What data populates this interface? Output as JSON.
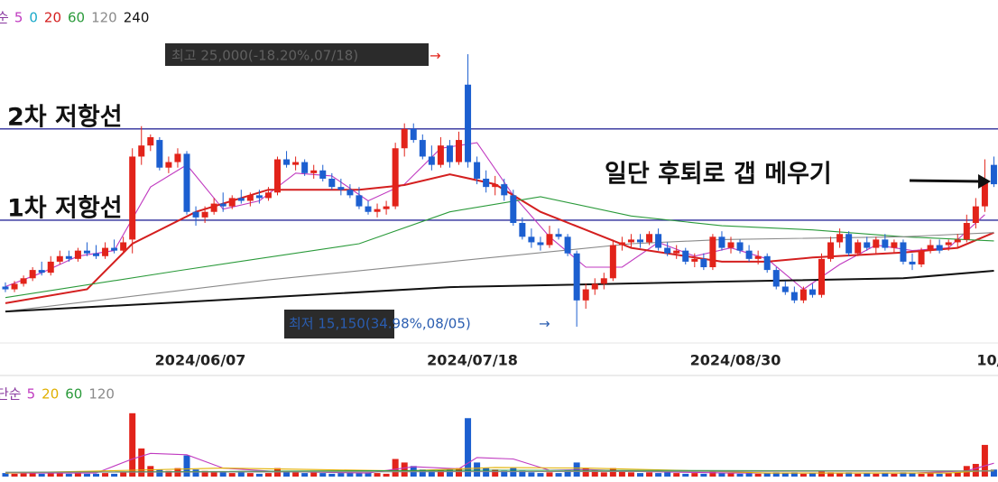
{
  "chart_data": {
    "type": "candlestick",
    "categories": [
      null,
      null,
      null,
      null,
      null,
      null,
      null,
      null,
      null,
      null,
      null,
      null,
      null,
      null,
      null,
      null,
      null,
      null,
      null,
      null,
      null,
      "2024/06/07",
      null,
      null,
      null,
      null,
      null,
      null,
      null,
      null,
      null,
      null,
      null,
      null,
      null,
      null,
      null,
      null,
      null,
      null,
      null,
      null,
      null,
      null,
      null,
      null,
      null,
      null,
      null,
      null,
      null,
      "2024/07/18",
      null,
      null,
      null,
      null,
      null,
      null,
      null,
      null,
      null,
      null,
      null,
      null,
      null,
      null,
      null,
      null,
      null,
      null,
      null,
      null,
      null,
      null,
      null,
      null,
      null,
      null,
      null,
      null,
      "2024/08/30",
      null,
      null,
      null,
      null,
      null,
      null,
      null,
      null,
      null,
      null,
      null,
      null,
      null,
      null,
      null,
      null,
      null,
      null,
      null,
      null,
      null,
      null,
      null,
      null,
      null,
      null,
      null,
      "10/",
      null
    ],
    "open": [
      16600,
      16500,
      16700,
      16900,
      17200,
      17100,
      17500,
      17700,
      17600,
      17900,
      17800,
      17700,
      18000,
      17900,
      18300,
      21300,
      21700,
      21900,
      20900,
      21100,
      21400,
      19300,
      19100,
      19300,
      19600,
      19500,
      19800,
      19700,
      19900,
      19800,
      20000,
      21200,
      21000,
      21100,
      20700,
      20800,
      20500,
      20200,
      20100,
      19900,
      19500,
      19300,
      19400,
      19500,
      21600,
      22300,
      21900,
      21300,
      21000,
      21700,
      21100,
      23900,
      21100,
      20500,
      20200,
      20300,
      19900,
      18900,
      18400,
      18200,
      18100,
      18500,
      18400,
      17800,
      16100,
      16500,
      16700,
      16900,
      18100,
      18200,
      18300,
      18200,
      18500,
      18000,
      17800,
      17900,
      17500,
      17600,
      17300,
      18400,
      18000,
      18200,
      17900,
      17600,
      17700,
      17200,
      16600,
      16400,
      16100,
      16500,
      16300,
      17600,
      18200,
      18500,
      17800,
      18200,
      18000,
      18300,
      18000,
      18200,
      17500,
      17400,
      17900,
      18100,
      18100,
      18200,
      18300,
      18900,
      19500,
      21000
    ],
    "high": [
      16750,
      16800,
      17000,
      17300,
      17500,
      17700,
      17900,
      17900,
      18000,
      18200,
      18100,
      18200,
      18300,
      18400,
      21600,
      22400,
      22100,
      22000,
      21300,
      21600,
      21500,
      19500,
      19500,
      19800,
      20000,
      19900,
      20100,
      20000,
      20100,
      20200,
      21300,
      21500,
      21300,
      21200,
      21000,
      21000,
      20700,
      20500,
      20300,
      20200,
      19700,
      19600,
      19700,
      21800,
      22500,
      22500,
      22100,
      21700,
      22000,
      21900,
      22200,
      25000,
      21300,
      20800,
      20600,
      20500,
      20100,
      19100,
      18700,
      18400,
      18800,
      18700,
      18500,
      17900,
      16700,
      16900,
      17100,
      18300,
      18400,
      18500,
      18500,
      18600,
      18700,
      18200,
      18100,
      18000,
      17800,
      17800,
      18500,
      18600,
      18400,
      18300,
      18100,
      17900,
      17800,
      17300,
      16800,
      16600,
      16600,
      16700,
      17800,
      18400,
      18700,
      18600,
      18300,
      18400,
      18400,
      18500,
      18300,
      18300,
      17800,
      18000,
      18300,
      18300,
      18300,
      18500,
      19200,
      19800,
      21200,
      21300
    ],
    "low": [
      16400,
      16400,
      16600,
      16800,
      17000,
      17000,
      17400,
      17500,
      17500,
      17700,
      17600,
      17600,
      17800,
      17800,
      17800,
      21000,
      21500,
      20800,
      20700,
      20900,
      19200,
      18800,
      18900,
      19200,
      19300,
      19400,
      19600,
      19500,
      19600,
      19700,
      19900,
      20900,
      20800,
      20600,
      20500,
      20400,
      20100,
      19900,
      19800,
      19400,
      19200,
      19100,
      19200,
      19400,
      21300,
      21800,
      21200,
      20800,
      20900,
      20900,
      21000,
      20900,
      20300,
      20000,
      19900,
      19700,
      18800,
      18300,
      18000,
      17900,
      18000,
      18300,
      17700,
      15150,
      15800,
      16300,
      16500,
      16800,
      17900,
      18000,
      18000,
      18100,
      17900,
      17700,
      17600,
      17400,
      17300,
      17200,
      17200,
      17900,
      17800,
      17800,
      17500,
      17400,
      17100,
      16500,
      16300,
      16000,
      16000,
      16200,
      16200,
      17500,
      18000,
      17700,
      17700,
      17900,
      17800,
      17900,
      17800,
      17400,
      17200,
      17300,
      17800,
      17800,
      17900,
      18000,
      18200,
      18700,
      19300,
      20200
    ],
    "close": [
      16500,
      16700,
      16900,
      17200,
      17100,
      17500,
      17700,
      17600,
      17900,
      17800,
      17700,
      18000,
      17900,
      18200,
      21300,
      21700,
      22000,
      20900,
      21100,
      21400,
      19300,
      19100,
      19300,
      19600,
      19500,
      19800,
      19700,
      19900,
      19800,
      20000,
      21200,
      21000,
      21100,
      20700,
      20800,
      20500,
      20200,
      20100,
      19900,
      19500,
      19300,
      19400,
      19500,
      21600,
      22300,
      21900,
      21300,
      21000,
      21700,
      21100,
      21900,
      21100,
      20500,
      20200,
      20300,
      19900,
      18900,
      18400,
      18200,
      18100,
      18500,
      18400,
      17800,
      16100,
      16500,
      16700,
      16900,
      18100,
      18200,
      18300,
      18200,
      18500,
      18000,
      17800,
      17900,
      17500,
      17600,
      17300,
      18400,
      18000,
      18200,
      17900,
      17600,
      17700,
      17200,
      16600,
      16400,
      16100,
      16500,
      16300,
      17600,
      18200,
      18500,
      17800,
      18200,
      18000,
      18300,
      18000,
      18200,
      17500,
      17400,
      17900,
      18100,
      17900,
      18200,
      18300,
      18900,
      19500,
      20400,
      20300
    ],
    "up_color": "#e2231a",
    "down_color": "#1c5fd0",
    "ylim": [
      14560,
      26960
    ],
    "legend_label": "순",
    "series": [
      {
        "name": "5",
        "color": "#c03ac0",
        "x": [
          0,
          4,
          8,
          12,
          16,
          20,
          24,
          28,
          32,
          36,
          40,
          44,
          48,
          52,
          56,
          60,
          64,
          68,
          72,
          76,
          80,
          84,
          88,
          92,
          96,
          100,
          104,
          108
        ],
        "values": [
          16600,
          17100,
          17700,
          17900,
          20200,
          21000,
          19400,
          19700,
          20700,
          20600,
          19700,
          20300,
          21600,
          21800,
          19900,
          18400,
          17300,
          17300,
          18200,
          17700,
          18000,
          17600,
          16500,
          17400,
          18100,
          17900,
          18000,
          19200
        ]
      },
      {
        "name": "0",
        "color": "#19a9c9",
        "x": [],
        "values": []
      },
      {
        "name": "20",
        "color": "#d41f1f",
        "x": [
          0,
          9,
          14,
          21,
          29,
          39,
          44,
          49,
          54,
          59,
          69,
          79,
          84,
          89,
          99,
          105,
          109
        ],
        "values": [
          16000,
          16500,
          18150,
          19300,
          20100,
          20100,
          20270,
          20660,
          20300,
          19300,
          18000,
          17500,
          17500,
          17650,
          17830,
          18000,
          18550
        ]
      },
      {
        "name": "60",
        "color": "#2a9a3a",
        "x": [
          0,
          19,
          39,
          49,
          59,
          69,
          79,
          89,
          99,
          109
        ],
        "values": [
          16200,
          17170,
          18150,
          19300,
          19850,
          19150,
          18800,
          18650,
          18400,
          18250
        ]
      },
      {
        "name": "120",
        "color": "#8a8a8a",
        "x": [
          0,
          29,
          49,
          69,
          79,
          99,
          109
        ],
        "values": [
          15700,
          16840,
          17500,
          18150,
          18300,
          18400,
          18550
        ]
      },
      {
        "name": "240",
        "color": "#111111",
        "x": [
          0,
          19,
          49,
          79,
          99,
          109
        ],
        "values": [
          15700,
          16030,
          16580,
          16780,
          16900,
          17170
        ]
      }
    ],
    "resistance_lines": [
      {
        "label": "2차 저항선",
        "value": 22300,
        "color": "#2c2c9a"
      },
      {
        "label": "1차 저항선",
        "value": 19000,
        "color": "#2c2c9a"
      }
    ],
    "high_annotation": "최고 25,000(-18.20%,07/18)",
    "low_annotation": "최저 15,150(34.98%,08/05)",
    "annotation": "일단 후퇴로 갭 메우기",
    "volume": {
      "legend_label": "단순",
      "ylim": [
        0,
        100
      ],
      "values": [
        5,
        4,
        5,
        6,
        4,
        5,
        6,
        4,
        5,
        4,
        4,
        5,
        4,
        6,
        90,
        40,
        15,
        10,
        8,
        12,
        30,
        10,
        8,
        6,
        7,
        5,
        6,
        5,
        4,
        5,
        12,
        8,
        6,
        5,
        6,
        5,
        4,
        5,
        6,
        5,
        6,
        5,
        4,
        25,
        20,
        15,
        10,
        8,
        9,
        10,
        12,
        83,
        20,
        12,
        10,
        8,
        12,
        8,
        6,
        5,
        6,
        5,
        8,
        20,
        12,
        8,
        6,
        12,
        8,
        6,
        5,
        6,
        5,
        6,
        5,
        4,
        5,
        4,
        8,
        5,
        5,
        4,
        5,
        4,
        5,
        6,
        5,
        6,
        4,
        5,
        8,
        6,
        5,
        6,
        4,
        5,
        4,
        5,
        4,
        6,
        5,
        4,
        5,
        4,
        5,
        6,
        15,
        18,
        45,
        10
      ],
      "series": [
        {
          "name": "5",
          "color": "#c03ac0",
          "x": [
            0,
            10,
            14,
            16,
            20,
            24,
            30,
            40,
            45,
            50,
            52,
            56,
            60,
            64,
            70,
            80,
            90,
            100,
            106,
            109
          ],
          "values": [
            5,
            5,
            25,
            33,
            31,
            12,
            7,
            5,
            14,
            11,
            27,
            25,
            9,
            10,
            7,
            5,
            5,
            5,
            8,
            19
          ]
        },
        {
          "name": "20",
          "color": "#e0b000",
          "x": [
            0,
            14,
            24,
            34,
            44,
            54,
            64,
            74,
            84,
            94,
            104,
            109
          ],
          "values": [
            5,
            9,
            12,
            10,
            8,
            13,
            12,
            9,
            5,
            5,
            5,
            9
          ]
        },
        {
          "name": "60",
          "color": "#2a9a3a",
          "x": [
            0,
            54,
            109
          ],
          "values": [
            6,
            9,
            8
          ]
        },
        {
          "name": "120",
          "color": "#8a8a8a",
          "x": [
            0,
            109
          ],
          "values": [
            6,
            8
          ]
        }
      ]
    }
  }
}
